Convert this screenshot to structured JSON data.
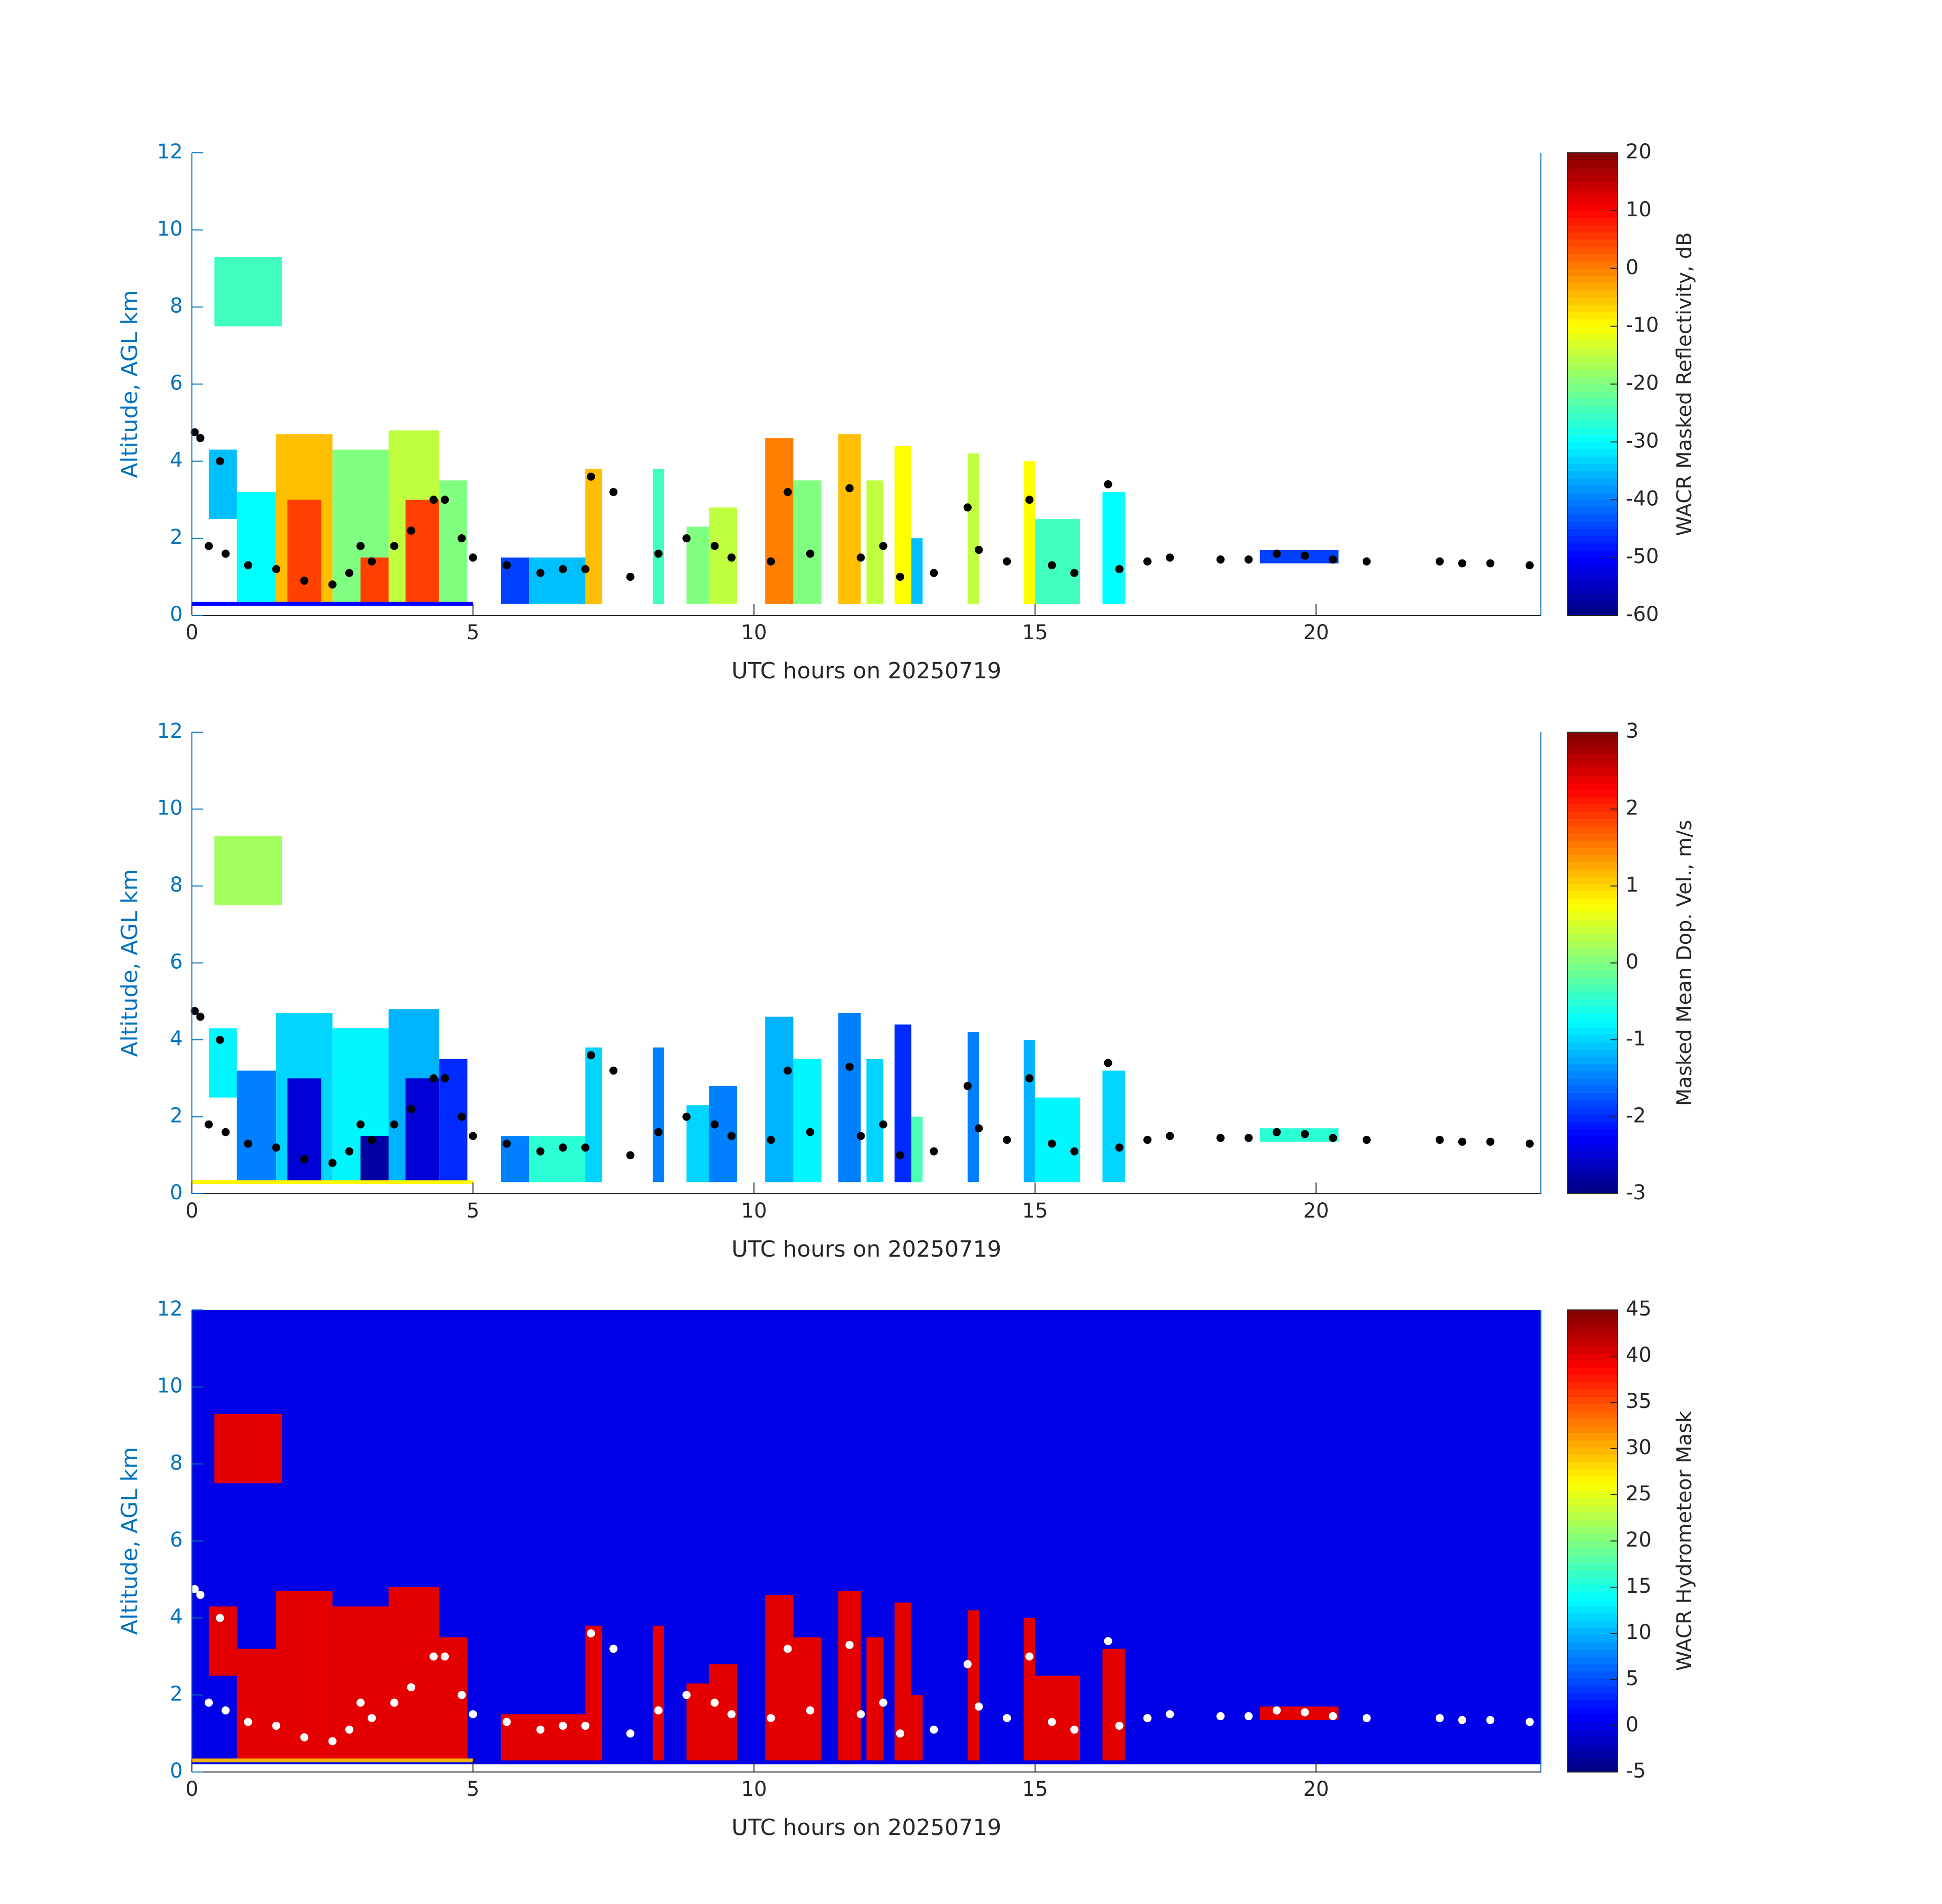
{
  "chart_data": [
    {
      "type": "heatmap",
      "colormap": "jet",
      "xlabel": "UTC hours on 20250719",
      "ylabel": "Altitude, AGL km",
      "ycolor": "#0072bd",
      "xlim": [
        0,
        24
      ],
      "xticks": [
        0,
        5,
        10,
        15,
        20
      ],
      "ylim": [
        0,
        12
      ],
      "yticks": [
        0,
        2,
        4,
        6,
        8,
        10,
        12
      ],
      "colorbar": {
        "label": "WACR Masked Reflectivity, dB",
        "lim": [
          -60,
          20
        ],
        "ticks": [
          -60,
          -50,
          -40,
          -30,
          -20,
          -10,
          0,
          10,
          20
        ]
      },
      "cells": {
        "x0": [
          0.4,
          0.3,
          0.8,
          1.5,
          1.7,
          2.5,
          3.0,
          3.5,
          3.8,
          4.4,
          0,
          5.5,
          6.0,
          7.0,
          8.2,
          8.8,
          9.2,
          10.2,
          10.7,
          11.5,
          12.0,
          12.5,
          12.8,
          13.8,
          14.8,
          15.0,
          16.2,
          19.0
        ],
        "x1": [
          1.6,
          0.8,
          1.5,
          2.5,
          2.3,
          3.5,
          3.8,
          4.4,
          4.4,
          4.9,
          5.0,
          6.0,
          7.0,
          7.3,
          8.4,
          9.2,
          9.7,
          10.7,
          11.2,
          11.9,
          12.3,
          12.8,
          13.0,
          14.0,
          15.0,
          15.8,
          16.6,
          20.4
        ],
        "y0": [
          7.5,
          2.5,
          0.3,
          0.3,
          0.3,
          0.3,
          0.3,
          0.3,
          0.3,
          0.3,
          0.25,
          0.3,
          0.3,
          0.3,
          0.3,
          0.3,
          0.3,
          0.3,
          0.3,
          0.3,
          0.3,
          0.3,
          0.3,
          0.3,
          0.3,
          0.3,
          0.3,
          1.35
        ],
        "y1": [
          9.3,
          4.3,
          3.2,
          4.7,
          3.0,
          4.3,
          1.5,
          4.8,
          3.0,
          3.5,
          0.35,
          1.5,
          1.5,
          3.8,
          3.8,
          2.3,
          2.8,
          4.6,
          3.5,
          4.7,
          3.5,
          4.4,
          2.0,
          4.2,
          4.0,
          2.5,
          3.2,
          1.7
        ],
        "values": [
          -25,
          -35,
          -30,
          -5,
          5,
          -20,
          5,
          -15,
          5,
          -20,
          -50,
          -45,
          -35,
          -5,
          -25,
          -20,
          -15,
          0,
          -20,
          -5,
          -15,
          -10,
          -35,
          -15,
          -10,
          -25,
          -30,
          -45
        ]
      },
      "points": {
        "color": "#000000",
        "x": [
          0.05,
          0.15,
          0.5,
          0.3,
          0.6,
          1.0,
          1.5,
          2.0,
          2.5,
          2.8,
          3.0,
          3.2,
          3.6,
          3.9,
          4.3,
          4.5,
          4.8,
          5.0,
          5.6,
          6.2,
          6.6,
          7.0,
          7.1,
          7.5,
          7.8,
          8.3,
          8.8,
          9.3,
          9.6,
          10.3,
          10.6,
          11.0,
          11.7,
          11.9,
          12.3,
          12.6,
          13.2,
          13.8,
          14.0,
          14.5,
          14.9,
          15.3,
          15.7,
          16.3,
          16.5,
          17.0,
          17.4,
          18.3,
          18.8,
          19.3,
          19.8,
          20.3,
          20.9,
          22.2,
          22.6,
          23.1,
          23.8
        ],
        "y": [
          4.75,
          4.6,
          4.0,
          1.8,
          1.6,
          1.3,
          1.2,
          0.9,
          0.8,
          1.1,
          1.8,
          1.4,
          1.8,
          2.2,
          3.0,
          3.0,
          2.0,
          1.5,
          1.3,
          1.1,
          1.2,
          1.2,
          3.6,
          3.2,
          1.0,
          1.6,
          2.0,
          1.8,
          1.5,
          1.4,
          3.2,
          1.6,
          3.3,
          1.5,
          1.8,
          1.0,
          1.1,
          2.8,
          1.7,
          1.4,
          3.0,
          1.3,
          1.1,
          3.4,
          1.2,
          1.4,
          1.5,
          1.45,
          1.45,
          1.6,
          1.55,
          1.45,
          1.4,
          1.4,
          1.35,
          1.35,
          1.3
        ]
      }
    },
    {
      "type": "heatmap",
      "colormap": "jet",
      "xlabel": "UTC hours on 20250719",
      "ylabel": "Altitude, AGL km",
      "ycolor": "#0072bd",
      "xlim": [
        0,
        24
      ],
      "xticks": [
        0,
        5,
        10,
        15,
        20
      ],
      "ylim": [
        0,
        12
      ],
      "yticks": [
        0,
        2,
        4,
        6,
        8,
        10,
        12
      ],
      "colorbar": {
        "label": "Masked Mean Dop. Vel., m/s",
        "lim": [
          -3,
          3
        ],
        "ticks": [
          -3,
          -2,
          -1,
          0,
          1,
          2,
          3
        ]
      },
      "cells": {
        "x0": [
          0.4,
          0.3,
          0.8,
          1.5,
          1.7,
          2.5,
          3.0,
          3.5,
          3.8,
          4.4,
          0,
          5.5,
          6.0,
          7.0,
          8.2,
          8.8,
          9.2,
          10.2,
          10.7,
          11.5,
          12.0,
          12.5,
          12.8,
          13.8,
          14.8,
          15.0,
          16.2,
          19.0
        ],
        "x1": [
          1.6,
          0.8,
          1.5,
          2.5,
          2.3,
          3.5,
          3.8,
          4.4,
          4.4,
          4.9,
          5.0,
          6.0,
          7.0,
          7.3,
          8.4,
          9.2,
          9.7,
          10.7,
          11.2,
          11.9,
          12.3,
          12.8,
          13.0,
          14.0,
          15.0,
          15.8,
          16.6,
          20.4
        ],
        "y0": [
          7.5,
          2.5,
          0.3,
          0.3,
          0.3,
          0.3,
          0.3,
          0.3,
          0.3,
          0.3,
          0.25,
          0.3,
          0.3,
          0.3,
          0.3,
          0.3,
          0.3,
          0.3,
          0.3,
          0.3,
          0.3,
          0.3,
          0.3,
          0.3,
          0.3,
          0.3,
          0.3,
          1.35
        ],
        "y1": [
          9.3,
          4.3,
          3.2,
          4.7,
          3.0,
          4.3,
          1.5,
          4.8,
          3.0,
          3.5,
          0.35,
          1.5,
          1.5,
          3.8,
          3.8,
          2.3,
          2.8,
          4.6,
          3.5,
          4.7,
          3.5,
          4.4,
          2.0,
          4.2,
          4.0,
          2.5,
          3.2,
          1.7
        ],
        "values": [
          0.2,
          -0.8,
          -1.5,
          -1.0,
          -2.5,
          -0.8,
          -2.8,
          -1.2,
          -2.5,
          -2.0,
          0.8,
          -1.5,
          -0.5,
          -1.0,
          -1.5,
          -1.0,
          -1.5,
          -1.2,
          -0.8,
          -1.5,
          -1.0,
          -2.0,
          -0.3,
          -1.5,
          -1.2,
          -0.8,
          -1.0,
          -0.5
        ]
      },
      "points": {
        "color": "#000000",
        "x": [
          0.05,
          0.15,
          0.5,
          0.3,
          0.6,
          1.0,
          1.5,
          2.0,
          2.5,
          2.8,
          3.0,
          3.2,
          3.6,
          3.9,
          4.3,
          4.5,
          4.8,
          5.0,
          5.6,
          6.2,
          6.6,
          7.0,
          7.1,
          7.5,
          7.8,
          8.3,
          8.8,
          9.3,
          9.6,
          10.3,
          10.6,
          11.0,
          11.7,
          11.9,
          12.3,
          12.6,
          13.2,
          13.8,
          14.0,
          14.5,
          14.9,
          15.3,
          15.7,
          16.3,
          16.5,
          17.0,
          17.4,
          18.3,
          18.8,
          19.3,
          19.8,
          20.3,
          20.9,
          22.2,
          22.6,
          23.1,
          23.8
        ],
        "y": [
          4.75,
          4.6,
          4.0,
          1.8,
          1.6,
          1.3,
          1.2,
          0.9,
          0.8,
          1.1,
          1.8,
          1.4,
          1.8,
          2.2,
          3.0,
          3.0,
          2.0,
          1.5,
          1.3,
          1.1,
          1.2,
          1.2,
          3.6,
          3.2,
          1.0,
          1.6,
          2.0,
          1.8,
          1.5,
          1.4,
          3.2,
          1.6,
          3.3,
          1.5,
          1.8,
          1.0,
          1.1,
          2.8,
          1.7,
          1.4,
          3.0,
          1.3,
          1.1,
          3.4,
          1.2,
          1.4,
          1.5,
          1.45,
          1.45,
          1.6,
          1.55,
          1.45,
          1.4,
          1.4,
          1.35,
          1.35,
          1.3
        ]
      }
    },
    {
      "type": "heatmap",
      "colormap": "jet",
      "xlabel": "UTC hours on 20250719",
      "ylabel": "Altitude, AGL km",
      "ycolor": "#0072bd",
      "xlim": [
        0,
        24
      ],
      "xticks": [
        0,
        5,
        10,
        15,
        20
      ],
      "ylim": [
        0,
        12
      ],
      "yticks": [
        0,
        2,
        4,
        6,
        8,
        10,
        12
      ],
      "colorbar": {
        "label": "WACR Hydrometeor Mask",
        "lim": [
          -5,
          45
        ],
        "ticks": [
          -5,
          0,
          5,
          10,
          15,
          20,
          25,
          30,
          35,
          40,
          45
        ]
      },
      "cells": {
        "x0": [
          0,
          0.4,
          0.3,
          0.8,
          1.5,
          2.5,
          3.5,
          4.4,
          0,
          5.5,
          6.0,
          7.0,
          8.2,
          8.8,
          9.2,
          10.2,
          10.7,
          11.5,
          12.0,
          12.5,
          12.8,
          13.8,
          14.8,
          15.0,
          16.2,
          19.0
        ],
        "x1": [
          24,
          1.6,
          0.8,
          1.5,
          2.5,
          3.5,
          4.4,
          4.9,
          5.0,
          6.0,
          7.0,
          7.3,
          8.4,
          9.2,
          9.7,
          10.7,
          11.2,
          11.9,
          12.3,
          12.8,
          13.0,
          14.0,
          15.0,
          15.8,
          16.6,
          20.4
        ],
        "y0": [
          0.2,
          7.5,
          2.5,
          0.3,
          0.3,
          0.3,
          0.3,
          0.3,
          0.25,
          0.3,
          0.3,
          0.3,
          0.3,
          0.3,
          0.3,
          0.3,
          0.3,
          0.3,
          0.3,
          0.3,
          0.3,
          0.3,
          0.3,
          0.3,
          0.3,
          1.35
        ],
        "y1": [
          12,
          9.3,
          4.3,
          3.2,
          4.7,
          4.3,
          4.8,
          3.5,
          0.35,
          1.5,
          1.5,
          3.8,
          3.8,
          2.3,
          2.8,
          4.6,
          3.5,
          4.7,
          3.5,
          4.4,
          2.0,
          4.2,
          4.0,
          2.5,
          3.2,
          1.7
        ],
        "values": [
          0,
          40,
          40,
          40,
          40,
          40,
          40,
          40,
          30,
          40,
          40,
          40,
          40,
          40,
          40,
          40,
          40,
          40,
          40,
          40,
          40,
          40,
          40,
          40,
          40,
          40
        ]
      },
      "points": {
        "color": "#ffffff",
        "x": [
          0.05,
          0.15,
          0.5,
          0.3,
          0.6,
          1.0,
          1.5,
          2.0,
          2.5,
          2.8,
          3.0,
          3.2,
          3.6,
          3.9,
          4.3,
          4.5,
          4.8,
          5.0,
          5.6,
          6.2,
          6.6,
          7.0,
          7.1,
          7.5,
          7.8,
          8.3,
          8.8,
          9.3,
          9.6,
          10.3,
          10.6,
          11.0,
          11.7,
          11.9,
          12.3,
          12.6,
          13.2,
          13.8,
          14.0,
          14.5,
          14.9,
          15.3,
          15.7,
          16.3,
          16.5,
          17.0,
          17.4,
          18.3,
          18.8,
          19.3,
          19.8,
          20.3,
          20.9,
          22.2,
          22.6,
          23.1,
          23.8
        ],
        "y": [
          4.75,
          4.6,
          4.0,
          1.8,
          1.6,
          1.3,
          1.2,
          0.9,
          0.8,
          1.1,
          1.8,
          1.4,
          1.8,
          2.2,
          3.0,
          3.0,
          2.0,
          1.5,
          1.3,
          1.1,
          1.2,
          1.2,
          3.6,
          3.2,
          1.0,
          1.6,
          2.0,
          1.8,
          1.5,
          1.4,
          3.2,
          1.6,
          3.3,
          1.5,
          1.8,
          1.0,
          1.1,
          2.8,
          1.7,
          1.4,
          3.0,
          1.3,
          1.1,
          3.4,
          1.2,
          1.4,
          1.5,
          1.45,
          1.45,
          1.6,
          1.55,
          1.45,
          1.4,
          1.4,
          1.35,
          1.35,
          1.3
        ]
      }
    }
  ]
}
